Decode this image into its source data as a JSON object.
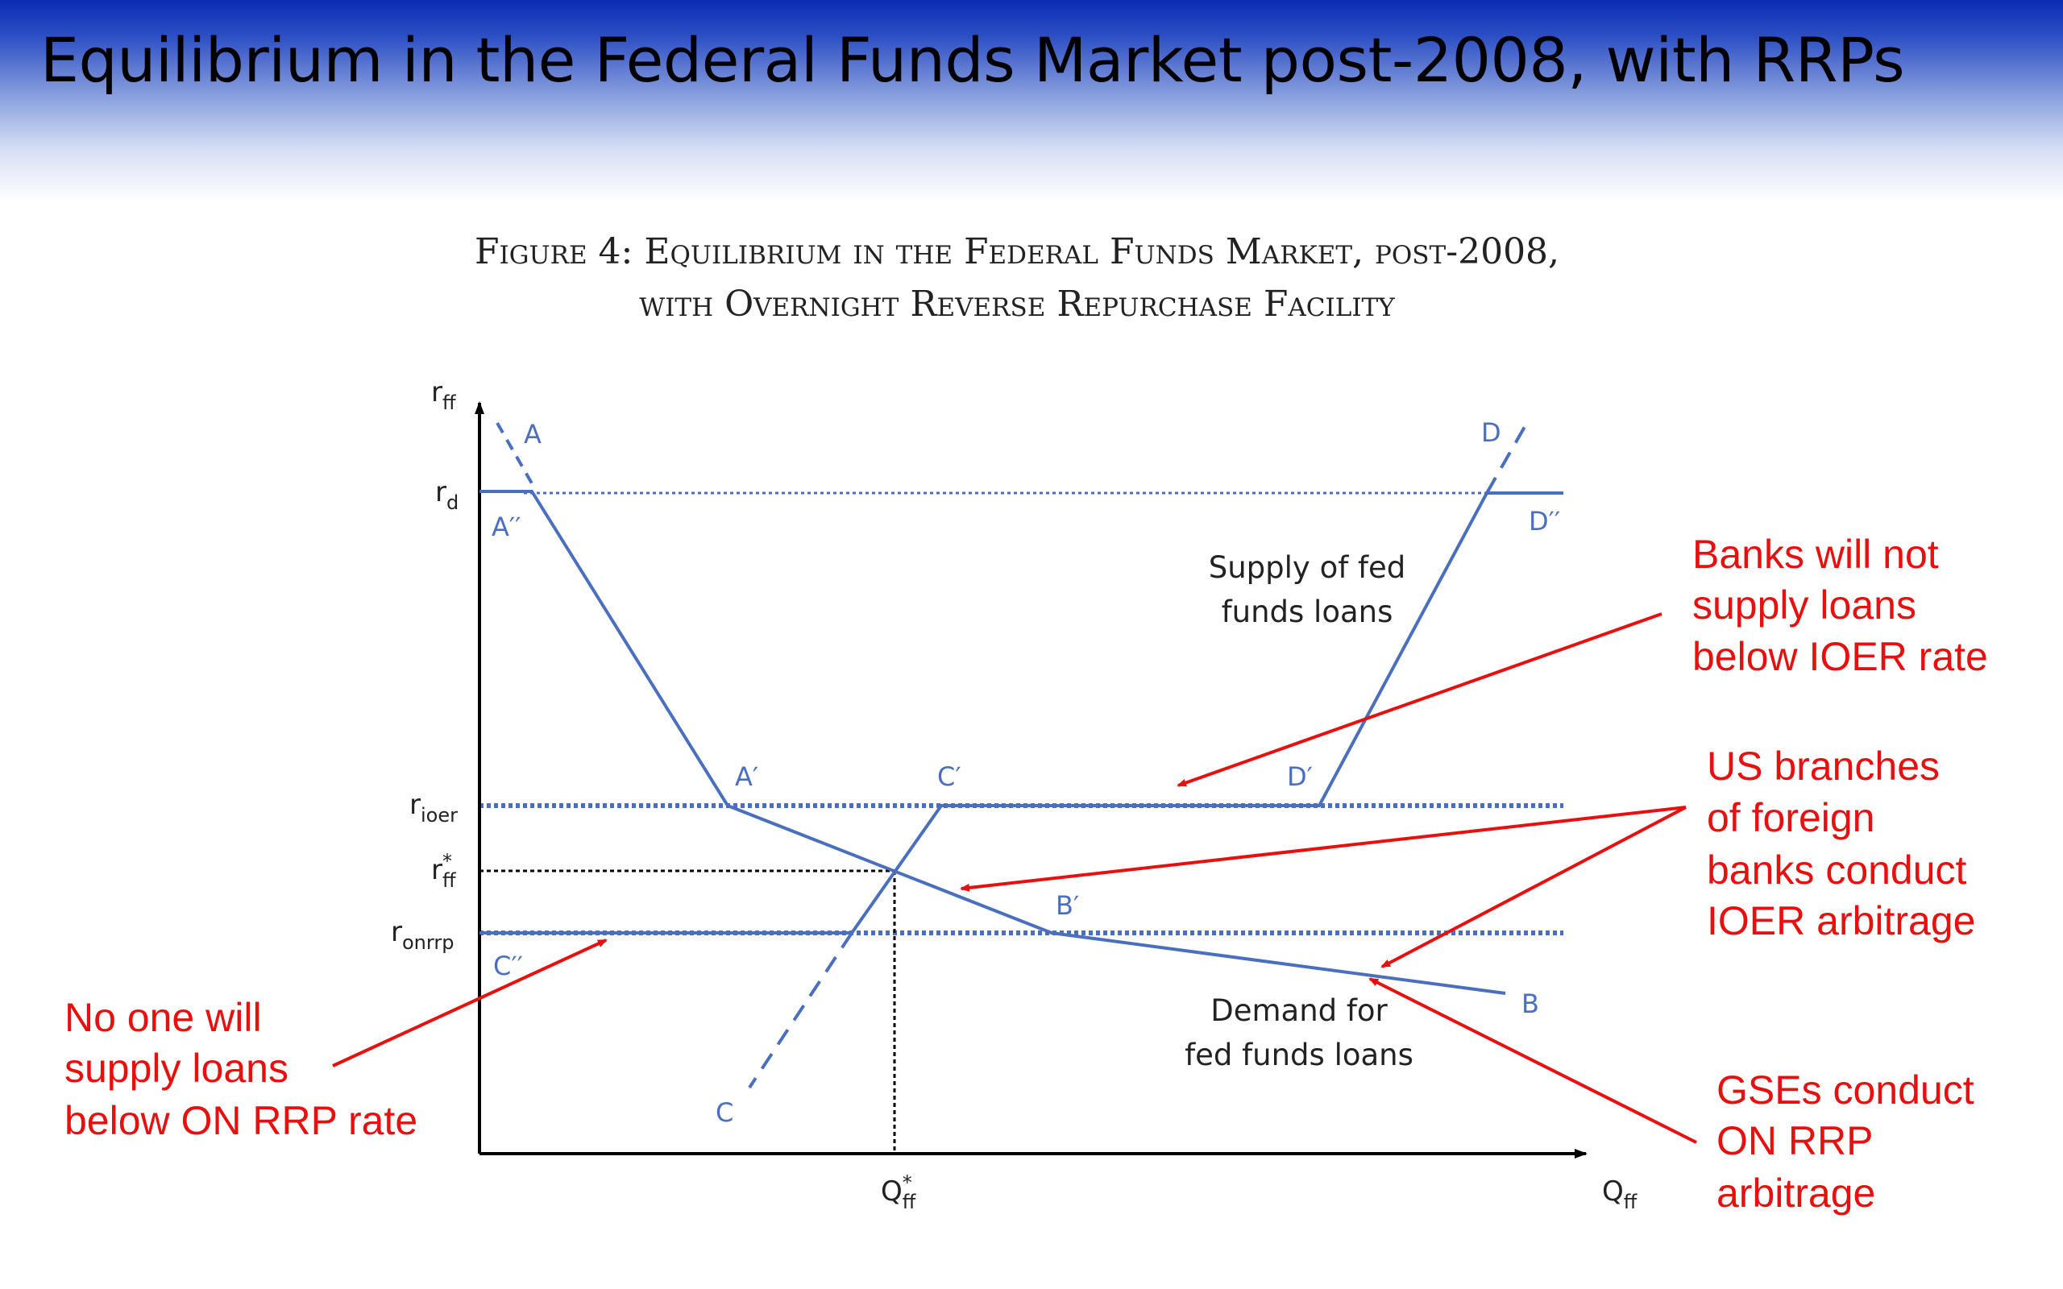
{
  "slide": {
    "title": "Equilibrium in the Federal Funds Market post-2008, with RRPs"
  },
  "figure": {
    "caption_line1": "Figure 4: Equilibrium in the Federal Funds Market, post-2008,",
    "caption_line2": "with Overnight Reverse Repurchase Facility"
  },
  "axes": {
    "y_main": "r",
    "y_sub": "ff",
    "x_main": "Q",
    "x_sub": "ff",
    "ticks": {
      "rd": {
        "main": "r",
        "sub": "d"
      },
      "rioer": {
        "main": "r",
        "sub": "ioer"
      },
      "rffstar": {
        "main": "r",
        "sub": "ff",
        "sup": "*"
      },
      "ronrrp": {
        "main": "r",
        "sub": "onrrp"
      },
      "qstar": {
        "main": "Q",
        "sub": "ff",
        "sup": "*"
      }
    }
  },
  "points": {
    "A": "A",
    "A2": "A′′",
    "A1": "A′",
    "B": "B",
    "B1": "B′",
    "C": "C",
    "C1": "C′",
    "C2": "C′′",
    "D": "D",
    "D1": "D′",
    "D2": "D′′"
  },
  "curve_labels": {
    "supply_line1": "Supply of fed",
    "supply_line2": "funds loans",
    "demand_line1": "Demand for",
    "demand_line2": "fed funds loans"
  },
  "annotations": {
    "banks": [
      "Banks will not",
      "supply loans",
      "below IOER rate"
    ],
    "us_branches": [
      "US branches",
      "of foreign",
      "banks conduct",
      "IOER arbitrage"
    ],
    "no_one": [
      "No one will",
      "supply loans",
      "below ON RRP rate"
    ],
    "gses": [
      "GSEs conduct",
      "ON RRP",
      "arbitrage"
    ]
  },
  "colors": {
    "curve": "#4a6fbf",
    "annotation": "#e8100e",
    "title_band": "#0a2bb3"
  }
}
